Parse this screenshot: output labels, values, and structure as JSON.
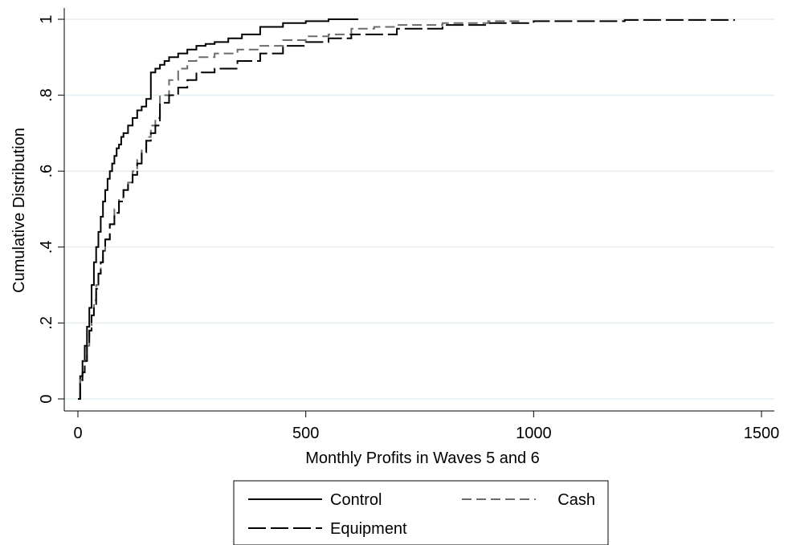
{
  "chart_data": {
    "type": "line",
    "title": "",
    "xlabel": "Monthly Profits in Waves 5 and 6",
    "ylabel": "Cumulative Distribution",
    "xlim": [
      0,
      1500
    ],
    "ylim": [
      0,
      1
    ],
    "x_ticks": [
      0,
      500,
      1000,
      1500
    ],
    "x_tick_labels": [
      "0",
      "500",
      "1000",
      "1500"
    ],
    "y_ticks": [
      0,
      0.2,
      0.4,
      0.6,
      0.8,
      1
    ],
    "y_tick_labels": [
      "0",
      ".2",
      ".4",
      ".6",
      ".8",
      "1"
    ],
    "grid": "horizontal",
    "legend_position": "bottom",
    "series": [
      {
        "name": "Control",
        "color": "#000000",
        "dash": "solid",
        "x": [
          0,
          5,
          10,
          15,
          20,
          25,
          30,
          35,
          40,
          45,
          50,
          55,
          60,
          65,
          70,
          75,
          80,
          85,
          90,
          95,
          100,
          110,
          120,
          130,
          140,
          150,
          160,
          170,
          180,
          190,
          200,
          220,
          240,
          260,
          280,
          300,
          330,
          360,
          400,
          450,
          500,
          550,
          615
        ],
        "y": [
          0.0,
          0.06,
          0.1,
          0.14,
          0.19,
          0.24,
          0.3,
          0.36,
          0.4,
          0.44,
          0.48,
          0.52,
          0.55,
          0.58,
          0.6,
          0.62,
          0.64,
          0.66,
          0.67,
          0.69,
          0.7,
          0.72,
          0.74,
          0.76,
          0.77,
          0.79,
          0.86,
          0.87,
          0.88,
          0.89,
          0.9,
          0.91,
          0.92,
          0.93,
          0.935,
          0.94,
          0.95,
          0.96,
          0.98,
          0.99,
          0.995,
          1.0,
          1.0
        ]
      },
      {
        "name": "Cash",
        "color": "#6b6b6b",
        "dash": "medium",
        "x": [
          0,
          5,
          10,
          15,
          20,
          25,
          30,
          35,
          40,
          45,
          50,
          55,
          60,
          70,
          80,
          90,
          100,
          110,
          120,
          130,
          140,
          150,
          160,
          170,
          180,
          200,
          220,
          240,
          260,
          300,
          350,
          400,
          450,
          500,
          550,
          600,
          650,
          700,
          800,
          900,
          975
        ],
        "y": [
          0.0,
          0.05,
          0.07,
          0.1,
          0.14,
          0.18,
          0.22,
          0.26,
          0.3,
          0.33,
          0.36,
          0.39,
          0.42,
          0.46,
          0.5,
          0.53,
          0.55,
          0.57,
          0.6,
          0.63,
          0.66,
          0.69,
          0.72,
          0.74,
          0.8,
          0.84,
          0.87,
          0.89,
          0.9,
          0.91,
          0.92,
          0.93,
          0.945,
          0.955,
          0.96,
          0.975,
          0.98,
          0.985,
          0.99,
          0.995,
          1.0
        ]
      },
      {
        "name": "Equipment",
        "color": "#000000",
        "dash": "long",
        "x": [
          0,
          5,
          10,
          15,
          20,
          25,
          30,
          35,
          40,
          45,
          50,
          55,
          60,
          70,
          80,
          90,
          100,
          110,
          120,
          130,
          140,
          150,
          160,
          170,
          180,
          200,
          220,
          240,
          260,
          300,
          350,
          400,
          450,
          500,
          550,
          600,
          700,
          800,
          900,
          1000,
          1200,
          1440
        ],
        "y": [
          0.0,
          0.04,
          0.07,
          0.1,
          0.14,
          0.18,
          0.22,
          0.25,
          0.29,
          0.33,
          0.36,
          0.39,
          0.42,
          0.46,
          0.49,
          0.52,
          0.55,
          0.57,
          0.59,
          0.62,
          0.65,
          0.68,
          0.7,
          0.72,
          0.78,
          0.8,
          0.82,
          0.84,
          0.86,
          0.87,
          0.89,
          0.91,
          0.93,
          0.94,
          0.95,
          0.96,
          0.975,
          0.985,
          0.99,
          0.995,
          0.998,
          1.0
        ]
      }
    ]
  }
}
